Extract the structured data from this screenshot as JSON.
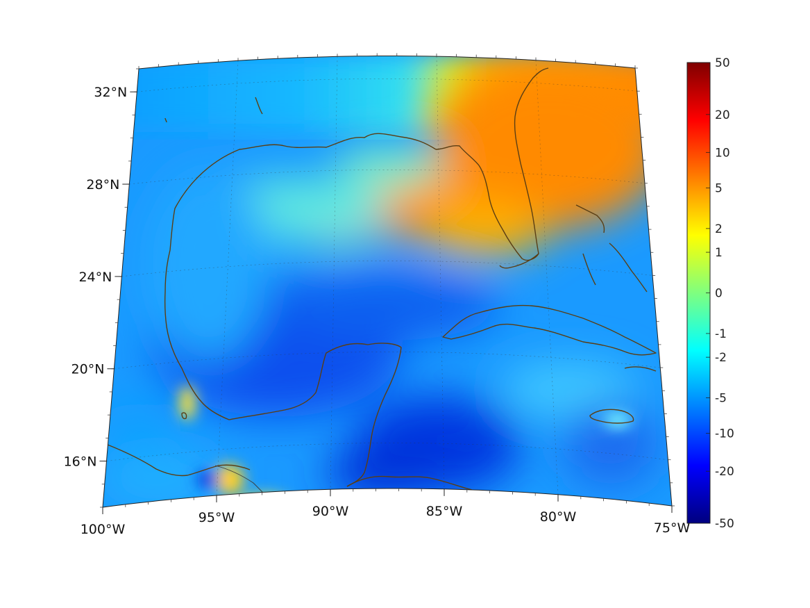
{
  "chart_data": {
    "type": "heatmap",
    "title": "",
    "projection": "lambert-conformal-conic",
    "lon_range": [
      -100,
      -75
    ],
    "lat_range": [
      14,
      33
    ],
    "x_ticks": [
      {
        "lon": -100,
        "label": "100°W"
      },
      {
        "lon": -95,
        "label": "95°W"
      },
      {
        "lon": -90,
        "label": "90°W"
      },
      {
        "lon": -85,
        "label": "85°W"
      },
      {
        "lon": -80,
        "label": "80°W"
      },
      {
        "lon": -75,
        "label": "75°W"
      }
    ],
    "y_ticks": [
      {
        "lat": 32,
        "label": "32°N"
      },
      {
        "lat": 28,
        "label": "28°N"
      },
      {
        "lat": 24,
        "label": "24°N"
      },
      {
        "lat": 20,
        "label": "20°N"
      },
      {
        "lat": 16,
        "label": "16°N"
      }
    ],
    "grid": true,
    "colorbar": {
      "location": "right",
      "colormap": "jet",
      "ticks": [
        {
          "value": 50,
          "label": "50"
        },
        {
          "value": 20,
          "label": "20"
        },
        {
          "value": 10,
          "label": "10"
        },
        {
          "value": 5,
          "label": "5"
        },
        {
          "value": 2,
          "label": "2"
        },
        {
          "value": 1,
          "label": "1"
        },
        {
          "value": 0,
          "label": "0"
        },
        {
          "value": -1,
          "label": "-1"
        },
        {
          "value": -2,
          "label": "-2"
        },
        {
          "value": -5,
          "label": "-5"
        },
        {
          "value": -10,
          "label": "-10"
        },
        {
          "value": -20,
          "label": "-20"
        },
        {
          "value": -50,
          "label": "-50"
        }
      ],
      "colors": [
        "#00007f",
        "#0000ff",
        "#007fff",
        "#00ffff",
        "#7fff7f",
        "#ffff00",
        "#ff7f00",
        "#ff0000",
        "#7f0000"
      ]
    },
    "regions": [
      {
        "name": "northeast-gulf-florida",
        "lon": -82.5,
        "lat": 28.0,
        "value": 5
      },
      {
        "name": "central-gulf-band",
        "lon": -88.0,
        "lat": 26.5,
        "value": 2
      },
      {
        "name": "western-gulf",
        "lon": -94.0,
        "lat": 25.0,
        "value": -3
      },
      {
        "name": "southern-gulf",
        "lon": -91.0,
        "lat": 22.0,
        "value": -8
      },
      {
        "name": "yucatan-channel",
        "lon": -85.5,
        "lat": 21.0,
        "value": -6
      },
      {
        "name": "northwest-caribbean",
        "lon": -84.0,
        "lat": 17.0,
        "value": -10
      },
      {
        "name": "bay-of-campeche-coast",
        "lon": -96.0,
        "lat": 18.5,
        "value": 1
      },
      {
        "name": "isthmus-tehuantepec",
        "lon": -94.5,
        "lat": 15.5,
        "value": 2
      },
      {
        "name": "central-caribbean",
        "lon": -78.0,
        "lat": 19.0,
        "value": -3
      },
      {
        "name": "atlantic-bahamas",
        "lon": -76.5,
        "lat": 25.0,
        "value": -2
      }
    ]
  }
}
